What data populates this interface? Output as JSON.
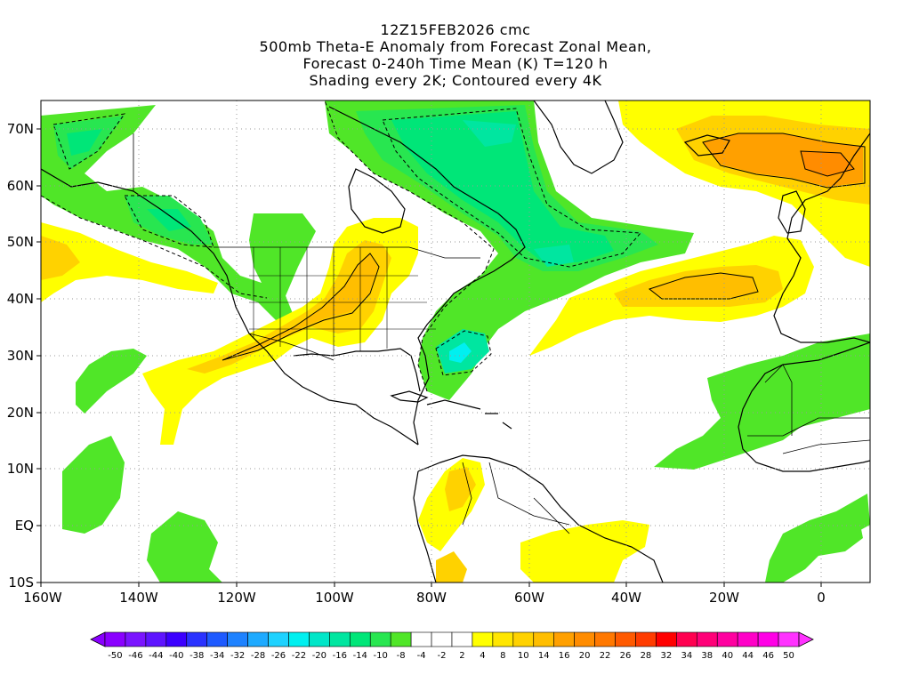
{
  "title": {
    "line1": "12Z15FEB2026 cmc",
    "line2": "500mb Theta-E Anomaly from Forecast Zonal Mean,",
    "line3": "Forecast 0-240h Time Mean (K) T=120 h",
    "line4": "Shading every 2K; Contoured every 4K"
  },
  "map": {
    "lat_labels": [
      "70N",
      "60N",
      "50N",
      "40N",
      "30N",
      "20N",
      "10N",
      "EQ",
      "10S"
    ],
    "lon_labels": [
      "160W",
      "140W",
      "120W",
      "100W",
      "80W",
      "60W",
      "40W",
      "20W",
      "0"
    ],
    "lon_range": [
      "160W",
      "10E"
    ],
    "lat_range": [
      "10S",
      "75N"
    ],
    "gridlines": "dotted"
  },
  "colorbar": {
    "labels": [
      "-50",
      "-46",
      "-44",
      "-40",
      "-38",
      "-34",
      "-32",
      "-28",
      "-26",
      "-22",
      "-20",
      "-16",
      "-14",
      "-10",
      "-8",
      "-4",
      "-2",
      "2",
      "4",
      "8",
      "10",
      "14",
      "16",
      "20",
      "22",
      "26",
      "28",
      "32",
      "34",
      "38",
      "40",
      "44",
      "46",
      "50"
    ],
    "colors": [
      "#8a00ff",
      "#7a14ff",
      "#5e14ff",
      "#3c00ff",
      "#2a32ff",
      "#1e5aff",
      "#1e82ff",
      "#1eaaff",
      "#1ed2ff",
      "#00f0f0",
      "#00e6c8",
      "#00e6a0",
      "#00e678",
      "#28e650",
      "#50e628",
      "#ffffff",
      "#ffffff",
      "#ffffff",
      "#ffff00",
      "#ffe600",
      "#ffd200",
      "#ffbe00",
      "#ffa000",
      "#ff8c00",
      "#ff7800",
      "#ff5a00",
      "#ff3c00",
      "#ff0000",
      "#ff0050",
      "#ff0078",
      "#ff00a0",
      "#ff00c8",
      "#ff00e6",
      "#ff32ff"
    ]
  }
}
